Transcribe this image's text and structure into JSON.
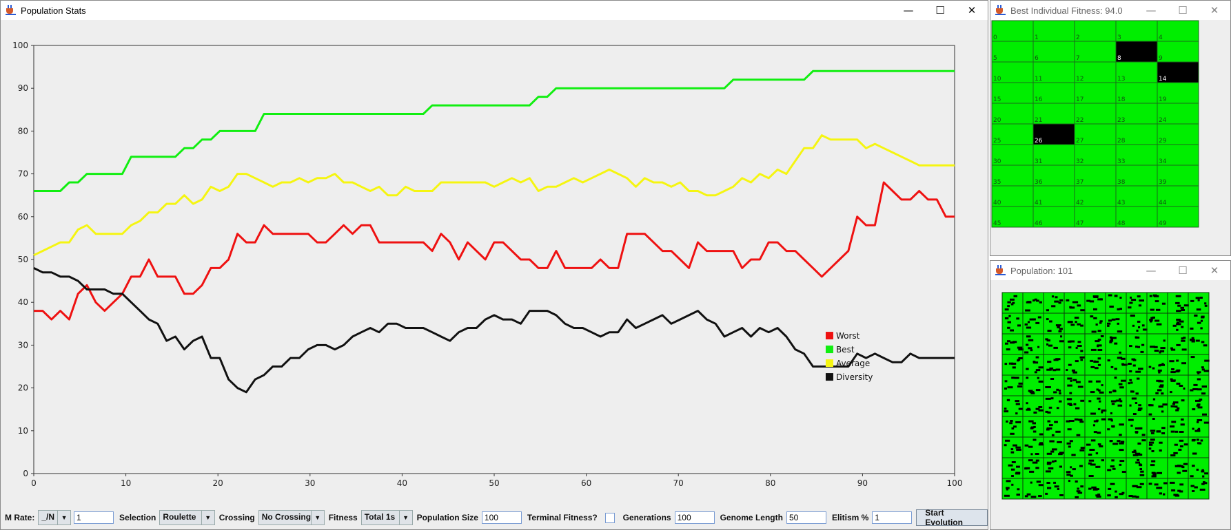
{
  "main_window": {
    "title": "Population Stats"
  },
  "best_window": {
    "title": "Best Individual Fitness: 94.0",
    "black_cells": [
      8,
      14,
      26
    ]
  },
  "population_window": {
    "title": "Population: 101"
  },
  "window_controls": {
    "minimize": "—",
    "maximize": "☐",
    "close": "✕"
  },
  "chart_data": {
    "type": "line",
    "title": "",
    "xlabel": "",
    "ylabel": "",
    "xlim": [
      0,
      100
    ],
    "ylim": [
      0,
      100
    ],
    "xticks": [
      "0",
      "10",
      "20",
      "30",
      "40",
      "50",
      "60",
      "70",
      "80",
      "90",
      "100"
    ],
    "yticks": [
      "0",
      "10",
      "20",
      "30",
      "40",
      "50",
      "60",
      "70",
      "80",
      "90",
      "100"
    ],
    "grid": false,
    "legend": "right",
    "series": [
      {
        "name": "Worst",
        "color": "#ee1111",
        "values": [
          38,
          38,
          36,
          38,
          36,
          42,
          44,
          40,
          38,
          40,
          42,
          46,
          46,
          50,
          46,
          46,
          46,
          42,
          42,
          44,
          48,
          48,
          50,
          56,
          54,
          54,
          58,
          56,
          56,
          56,
          56,
          56,
          54,
          54,
          56,
          58,
          56,
          58,
          58,
          54,
          54,
          54,
          54,
          54,
          54,
          52,
          56,
          54,
          50,
          54,
          52,
          50,
          54,
          54,
          52,
          50,
          50,
          48,
          48,
          52,
          48,
          48,
          48,
          48,
          50,
          48,
          48,
          56,
          56,
          56,
          54,
          52,
          52,
          50,
          48,
          54,
          52,
          52,
          52,
          52,
          48,
          50,
          50,
          54,
          54,
          52,
          52,
          50,
          48,
          46,
          48,
          50,
          52,
          60,
          58,
          58,
          68,
          66,
          64,
          64,
          66,
          64,
          64,
          60,
          60
        ]
      },
      {
        "name": "Best",
        "color": "#11ee11",
        "values": [
          66,
          66,
          66,
          66,
          68,
          68,
          70,
          70,
          70,
          70,
          70,
          74,
          74,
          74,
          74,
          74,
          74,
          76,
          76,
          78,
          78,
          80,
          80,
          80,
          80,
          80,
          84,
          84,
          84,
          84,
          84,
          84,
          84,
          84,
          84,
          84,
          84,
          84,
          84,
          84,
          84,
          84,
          84,
          84,
          84,
          86,
          86,
          86,
          86,
          86,
          86,
          86,
          86,
          86,
          86,
          86,
          86,
          88,
          88,
          90,
          90,
          90,
          90,
          90,
          90,
          90,
          90,
          90,
          90,
          90,
          90,
          90,
          90,
          90,
          90,
          90,
          90,
          90,
          90,
          92,
          92,
          92,
          92,
          92,
          92,
          92,
          92,
          92,
          94,
          94,
          94,
          94,
          94,
          94,
          94,
          94,
          94,
          94,
          94,
          94,
          94,
          94,
          94,
          94,
          94
        ]
      },
      {
        "name": "Average",
        "color": "#f5f511",
        "values": [
          51,
          52,
          53,
          54,
          54,
          57,
          58,
          56,
          56,
          56,
          56,
          58,
          59,
          61,
          61,
          63,
          63,
          65,
          63,
          64,
          67,
          66,
          67,
          70,
          70,
          69,
          68,
          67,
          68,
          68,
          69,
          68,
          69,
          69,
          70,
          68,
          68,
          67,
          66,
          67,
          65,
          65,
          67,
          66,
          66,
          66,
          68,
          68,
          68,
          68,
          68,
          68,
          67,
          68,
          69,
          68,
          69,
          66,
          67,
          67,
          68,
          69,
          68,
          69,
          70,
          71,
          70,
          69,
          67,
          69,
          68,
          68,
          67,
          68,
          66,
          66,
          65,
          65,
          66,
          67,
          69,
          68,
          70,
          69,
          71,
          70,
          73,
          76,
          76,
          79,
          78,
          78,
          78,
          78,
          76,
          77,
          76,
          75,
          74,
          73,
          72,
          72,
          72,
          72,
          72
        ]
      },
      {
        "name": "Diversity",
        "color": "#111111",
        "values": [
          48,
          47,
          47,
          46,
          46,
          45,
          43,
          43,
          43,
          42,
          42,
          40,
          38,
          36,
          35,
          31,
          32,
          29,
          31,
          32,
          27,
          27,
          22,
          20,
          19,
          22,
          23,
          25,
          25,
          27,
          27,
          29,
          30,
          30,
          29,
          30,
          32,
          33,
          34,
          33,
          35,
          35,
          34,
          34,
          34,
          33,
          32,
          31,
          33,
          34,
          34,
          36,
          37,
          36,
          36,
          35,
          38,
          38,
          38,
          37,
          35,
          34,
          34,
          33,
          32,
          33,
          33,
          36,
          34,
          35,
          36,
          37,
          35,
          36,
          37,
          38,
          36,
          35,
          32,
          33,
          34,
          32,
          34,
          33,
          34,
          32,
          29,
          28,
          25,
          25,
          25,
          25,
          25,
          28,
          27,
          28,
          27,
          26,
          26,
          28,
          27,
          27,
          27,
          27,
          27
        ]
      }
    ]
  },
  "toolbar": {
    "mrate_label": "M Rate:",
    "mrate_select": "_/N",
    "mrate_value": "1",
    "selection_label": "Selection",
    "selection_value": "Roulette",
    "crossing_label": "Crossing",
    "crossing_value": "No Crossing",
    "fitness_label": "Fitness",
    "fitness_value": "Total 1s",
    "popsize_label": "Population Size",
    "popsize_value": "100",
    "terminal_label": "Terminal Fitness?",
    "generations_label": "Generations",
    "generations_value": "100",
    "genome_label": "Genome Length",
    "genome_value": "50",
    "elitism_label": "Elitism %",
    "elitism_value": "1",
    "start_button": "Start Evolution"
  }
}
